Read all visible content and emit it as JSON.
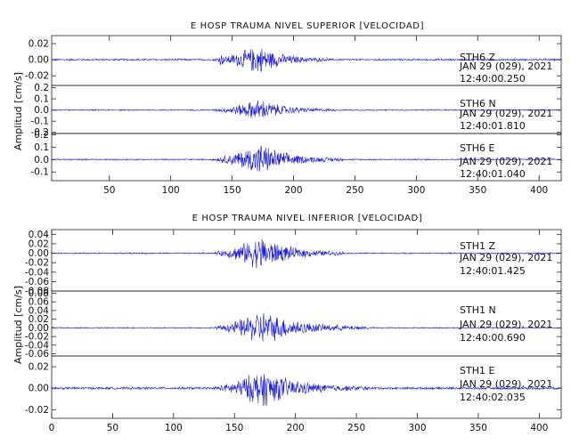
{
  "chart_data": [
    {
      "type": "line",
      "title": "E HOSP TRAUMA NIVEL SUPERIOR [VELOCIDAD]",
      "ylabel": "Amplitud [cm/s]",
      "xlim": [
        3,
        418
      ],
      "x_ticks": [
        "50",
        "100",
        "150",
        "200",
        "250",
        "300",
        "350",
        "400"
      ],
      "grid": false,
      "line_color": "#1a1adc",
      "series": [
        {
          "name": "STH6 Z",
          "station": "STH6",
          "component": "Z",
          "date": "JAN 29 (029), 2021",
          "time": "12:40:00.250",
          "ylim": [
            -0.032,
            0.03
          ],
          "y_ticks": [
            "0.02",
            "0.00",
            "-0.02"
          ],
          "noise_amplitude": 0.0012,
          "events": [
            {
              "x": [
                132,
                230
              ],
              "peak_x": 172,
              "peak_amplitude": 0.022
            },
            {
              "x": [
                137,
                150
              ],
              "peak_x": 141,
              "peak_amplitude": 0.012
            }
          ]
        },
        {
          "name": "STH6 N",
          "station": "STH6",
          "component": "N",
          "date": "JAN 29 (029), 2021",
          "time": "12:40:01.810",
          "ylim": [
            -0.21,
            0.22
          ],
          "y_ticks": [
            "0.2",
            "0.1",
            "0.0",
            "-0.1",
            "-0.2"
          ],
          "noise_amplitude": 0.006,
          "events": [
            {
              "x": [
                132,
                235
              ],
              "peak_x": 173,
              "peak_amplitude": 0.12
            }
          ]
        },
        {
          "name": "STH6 E",
          "station": "STH6",
          "component": "E",
          "date": "JAN 29 (029), 2021",
          "time": "12:40:01.040",
          "ylim": [
            -0.17,
            0.21
          ],
          "y_ticks": [
            "0.2",
            "0.1",
            "0.0",
            "-0.1"
          ],
          "noise_amplitude": 0.006,
          "events": [
            {
              "x": [
                132,
                240
              ],
              "peak_x": 173,
              "peak_amplitude": 0.16
            }
          ]
        }
      ]
    },
    {
      "type": "line",
      "title": "E HOSP TRAUMA NIVEL INFERIOR [VELOCIDAD]",
      "ylabel": "Amplitud [cm/s]",
      "xlim": [
        0,
        418
      ],
      "x_ticks": [
        "0",
        "50",
        "100",
        "150",
        "200",
        "250",
        "300",
        "350",
        "400"
      ],
      "grid": false,
      "line_color": "#1a1adc",
      "series": [
        {
          "name": "STH1 Z",
          "station": "STH1",
          "component": "Z",
          "date": "JAN 29 (029), 2021",
          "time": "12:40:01.425",
          "ylim": [
            -0.08,
            0.05
          ],
          "y_ticks": [
            "0.04",
            "0.02",
            "0.00",
            "-0.02",
            "-0.04",
            "-0.06",
            "-0.08"
          ],
          "noise_amplitude": 0.0015,
          "events": [
            {
              "x": [
                132,
                240
              ],
              "peak_x": 172,
              "peak_amplitude": 0.045
            }
          ]
        },
        {
          "name": "STH1 N",
          "station": "STH1",
          "component": "N",
          "date": "JAN 29 (029), 2021",
          "time": "12:40:00.690",
          "ylim": [
            -0.065,
            0.085
          ],
          "y_ticks": [
            "0.08",
            "0.06",
            "0.04",
            "0.02",
            "0.00",
            "-0.02",
            "-0.04",
            "-0.06"
          ],
          "noise_amplitude": 0.0015,
          "events": [
            {
              "x": [
                132,
                260
              ],
              "peak_x": 173,
              "peak_amplitude": 0.05
            }
          ]
        },
        {
          "name": "STH1 E",
          "station": "STH1",
          "component": "E",
          "date": "JAN 29 (029), 2021",
          "time": "12:40:02.035",
          "ylim": [
            -0.028,
            0.03
          ],
          "y_ticks": [
            "0.02",
            "0.00",
            "-0.02"
          ],
          "noise_amplitude": 0.0012,
          "events": [
            {
              "x": [
                132,
                260
              ],
              "peak_x": 173,
              "peak_amplitude": 0.022
            }
          ]
        }
      ]
    }
  ]
}
